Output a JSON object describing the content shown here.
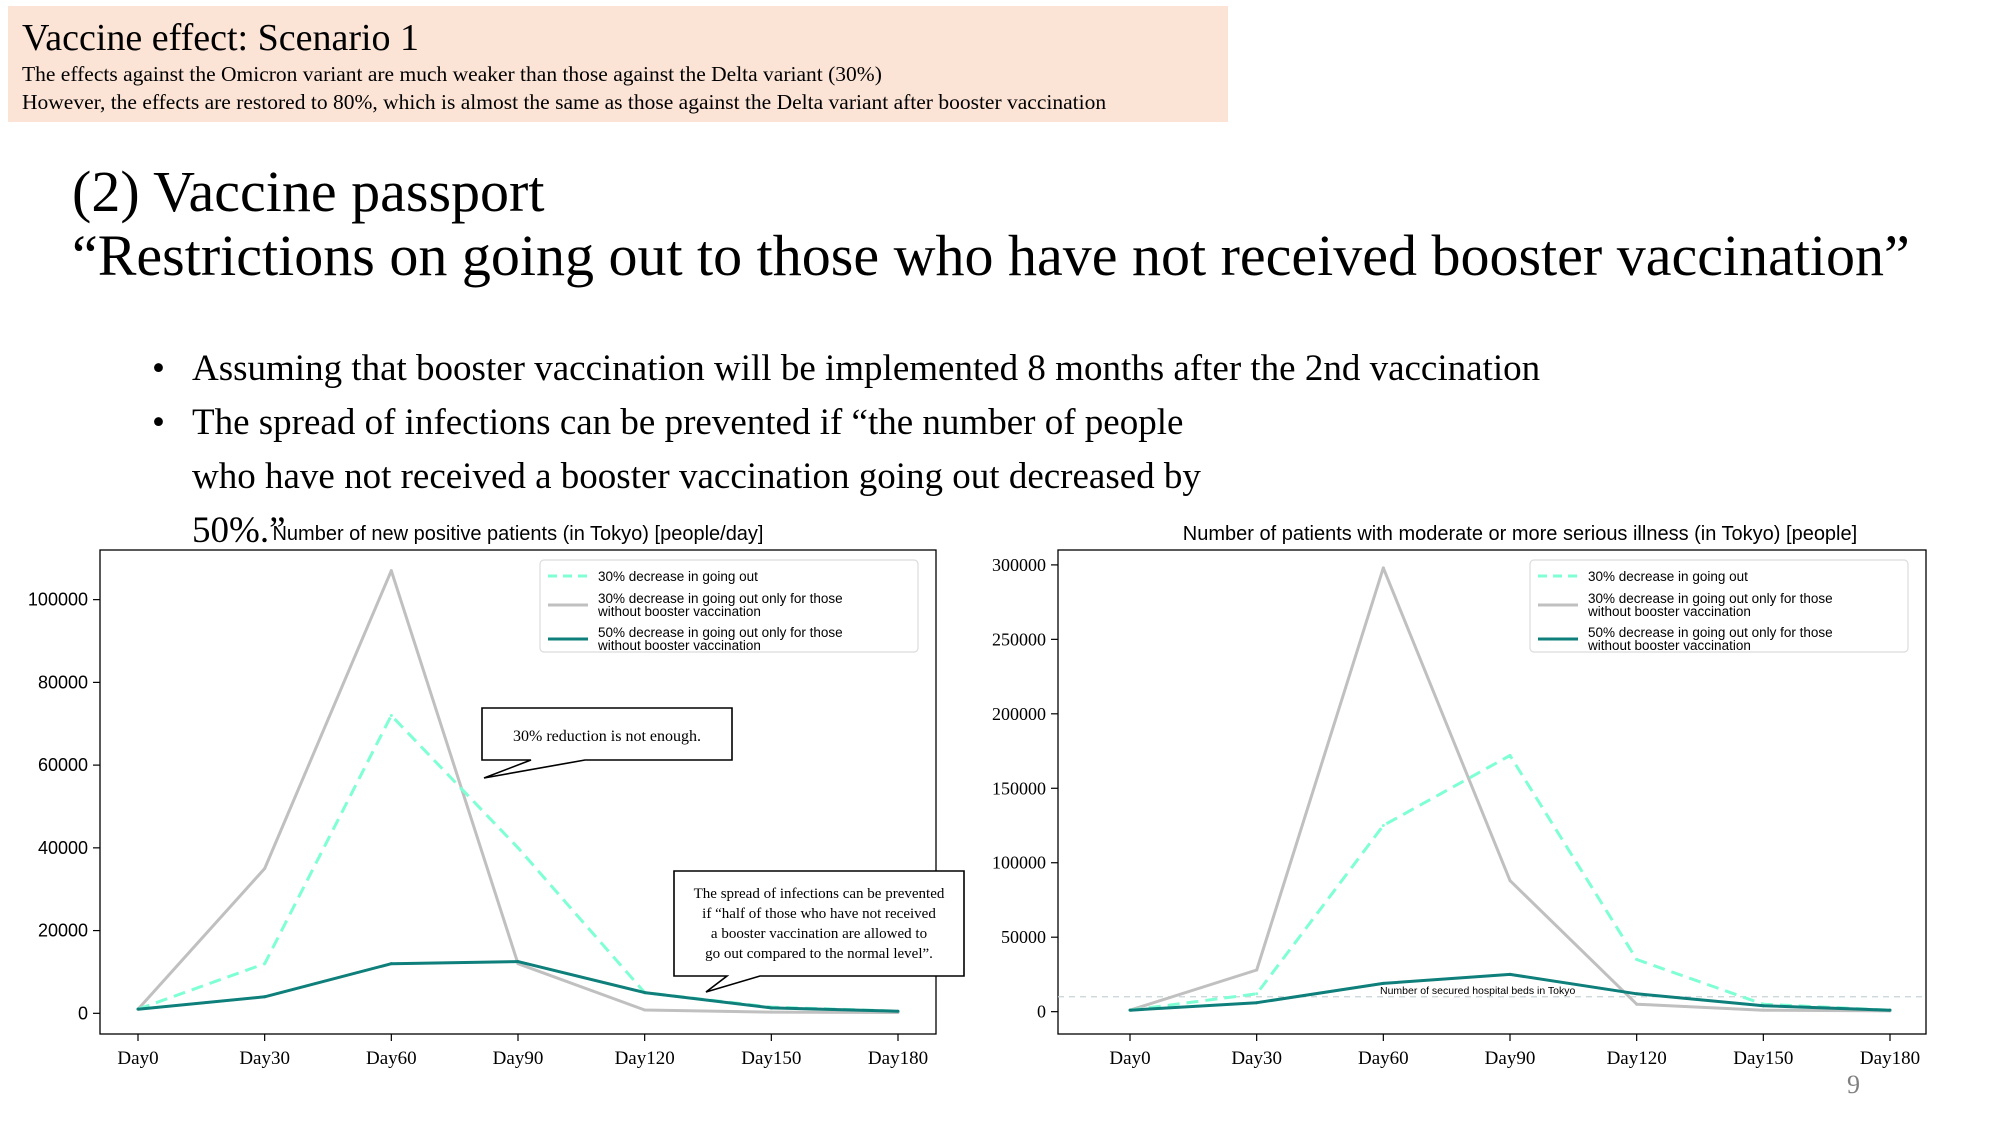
{
  "banner": {
    "title": "Vaccine effect: Scenario 1",
    "line1": "The effects against the Omicron variant are much weaker than those against the Delta variant (30%)",
    "line2": "However, the effects are restored to 80%, which is almost the same as those against the Delta variant after booster vaccination"
  },
  "heading": {
    "line1": "(2) Vaccine passport",
    "line2": "“Restrictions on going out to those who have not received booster vaccination”"
  },
  "bullets": [
    "Assuming that booster vaccination will be implemented 8 months after the 2nd vaccination",
    "The spread of infections can be prevented if “the number of people who have not received a booster vaccination going out decreased by 50%.”"
  ],
  "page_number": "9",
  "colors": {
    "series1": "#7fffd4",
    "series2": "#c0c0c0",
    "series3": "#0e7f7a",
    "banner_bg": "#fbe3d6"
  },
  "chart_data": [
    {
      "type": "line",
      "title": "Number of new positive patients (in Tokyo) [people/day]",
      "categories": [
        "Day0",
        "Day30",
        "Day60",
        "Day90",
        "Day120",
        "Day150",
        "Day180"
      ],
      "yticks": [
        0,
        20000,
        40000,
        60000,
        80000,
        100000
      ],
      "ylim": [
        -5000,
        112000
      ],
      "grid": false,
      "legend_position": "top-right",
      "series": [
        {
          "name": "30% decrease in going out",
          "values": [
            1000,
            12000,
            72000,
            40000,
            5000,
            1500,
            500
          ],
          "color": "#7fffd4",
          "dash": true
        },
        {
          "name": "30% decrease in going out only for those without booster vaccination",
          "values": [
            1000,
            35000,
            107000,
            12000,
            800,
            300,
            200
          ],
          "color": "#c0c0c0",
          "dash": false
        },
        {
          "name": "50% decrease in going out only for those without booster vaccination",
          "values": [
            1000,
            4000,
            12000,
            12500,
            5000,
            1300,
            500
          ],
          "color": "#0e7f7a",
          "dash": false
        }
      ],
      "annotations": [
        {
          "text": "30% reduction is not enough."
        },
        {
          "text": "The spread of infections can be prevented if “half of those who have not received a booster vaccination are allowed to go out compared to the normal level”."
        }
      ]
    },
    {
      "type": "line",
      "title": "Number of patients with moderate or more serious illness (in Tokyo) [people]",
      "categories": [
        "Day0",
        "Day30",
        "Day60",
        "Day90",
        "Day120",
        "Day150",
        "Day180"
      ],
      "yticks": [
        0,
        50000,
        100000,
        150000,
        200000,
        250000,
        300000
      ],
      "ylim": [
        -15000,
        310000
      ],
      "grid": false,
      "legend_position": "top-right",
      "series": [
        {
          "name": "30% decrease in going out",
          "values": [
            1000,
            12000,
            125000,
            172000,
            35000,
            5000,
            1000
          ],
          "color": "#7fffd4",
          "dash": true
        },
        {
          "name": "30% decrease in going out only for those without booster vaccination",
          "values": [
            1000,
            28000,
            298000,
            88000,
            5000,
            1000,
            500
          ],
          "color": "#c0c0c0",
          "dash": false
        },
        {
          "name": "50% decrease in going out only for those without booster vaccination",
          "values": [
            1000,
            6000,
            19000,
            25000,
            12000,
            4000,
            1000
          ],
          "color": "#0e7f7a",
          "dash": false
        }
      ],
      "reference_line": {
        "value": 10000,
        "label": "Number of secured hospital beds in Tokyo"
      }
    }
  ]
}
